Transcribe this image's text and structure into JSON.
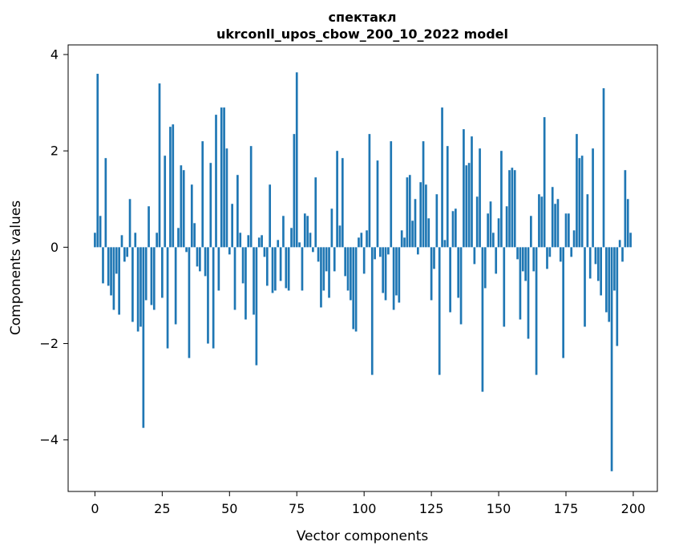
{
  "title": {
    "line1": "спектакл",
    "line2": "ukrconll_upos_cbow_200_10_2022 model"
  },
  "chart_data": {
    "type": "bar",
    "title": "спектакл — ukrconll_upos_cbow_200_10_2022 model",
    "xlabel": "Vector components",
    "ylabel": "Components values",
    "bar_color": "#1f77b4",
    "grid": false,
    "legend": null,
    "xlim": [
      -9.95,
      208.95
    ],
    "ylim": [
      -5.07,
      4.2
    ],
    "xticks": [
      0,
      25,
      50,
      75,
      100,
      125,
      150,
      175,
      200
    ],
    "yticks": [
      -4,
      -2,
      0,
      2,
      4
    ],
    "x_start": 0,
    "values": [
      0.3,
      3.6,
      0.65,
      -0.75,
      1.85,
      -0.8,
      -1.0,
      -1.3,
      -0.55,
      -1.4,
      0.25,
      -0.3,
      -0.2,
      1.0,
      -1.55,
      0.3,
      -1.75,
      -1.65,
      -3.75,
      -1.1,
      0.85,
      -1.2,
      -1.3,
      0.3,
      3.4,
      -1.05,
      1.9,
      -2.1,
      2.5,
      2.55,
      -1.6,
      0.4,
      1.7,
      1.6,
      -0.1,
      -2.3,
      1.3,
      0.5,
      -0.4,
      -0.5,
      2.2,
      -0.6,
      -2.0,
      1.75,
      -2.1,
      2.75,
      -0.9,
      2.9,
      2.9,
      2.05,
      -0.15,
      0.9,
      -1.3,
      1.5,
      0.3,
      -0.75,
      -1.5,
      0.25,
      2.1,
      -1.4,
      -2.45,
      0.2,
      0.25,
      -0.2,
      -0.8,
      1.3,
      -0.95,
      -0.9,
      0.15,
      -0.7,
      0.65,
      -0.85,
      -0.9,
      0.4,
      2.35,
      3.63,
      0.1,
      -0.9,
      0.7,
      0.65,
      0.3,
      -0.1,
      1.45,
      -0.3,
      -1.25,
      -0.9,
      -0.5,
      -1.05,
      0.8,
      -0.5,
      2.0,
      0.45,
      1.85,
      -0.6,
      -0.9,
      -1.1,
      -1.7,
      -1.75,
      0.2,
      0.3,
      -0.55,
      0.35,
      2.35,
      -2.65,
      -0.25,
      1.8,
      -0.2,
      -0.95,
      -1.1,
      -0.15,
      2.2,
      -1.3,
      -1.0,
      -1.15,
      0.35,
      0.2,
      1.45,
      1.5,
      0.55,
      1.0,
      -0.15,
      1.35,
      2.2,
      1.3,
      0.6,
      -1.1,
      -0.45,
      1.1,
      -2.65,
      2.9,
      0.15,
      2.1,
      -1.35,
      0.75,
      0.8,
      -1.05,
      -1.6,
      2.45,
      1.7,
      1.75,
      2.3,
      -0.35,
      1.05,
      2.05,
      -3.0,
      -0.85,
      0.7,
      0.95,
      0.3,
      -0.55,
      0.6,
      2.0,
      -1.65,
      0.85,
      1.6,
      1.65,
      1.6,
      -0.25,
      -1.5,
      -0.5,
      -0.7,
      -1.9,
      0.65,
      -0.5,
      -2.65,
      1.1,
      1.05,
      2.7,
      -0.45,
      -0.2,
      1.25,
      0.9,
      1.0,
      -0.3,
      -2.3,
      0.7,
      0.7,
      -0.2,
      0.35,
      2.35,
      1.85,
      1.9,
      -1.65,
      1.1,
      -0.65,
      2.05,
      -0.35,
      -0.7,
      -1.0,
      3.3,
      -1.35,
      -1.55,
      -4.65,
      -0.9,
      -2.05,
      0.15,
      -0.3,
      1.6,
      1.0,
      0.3
    ]
  }
}
